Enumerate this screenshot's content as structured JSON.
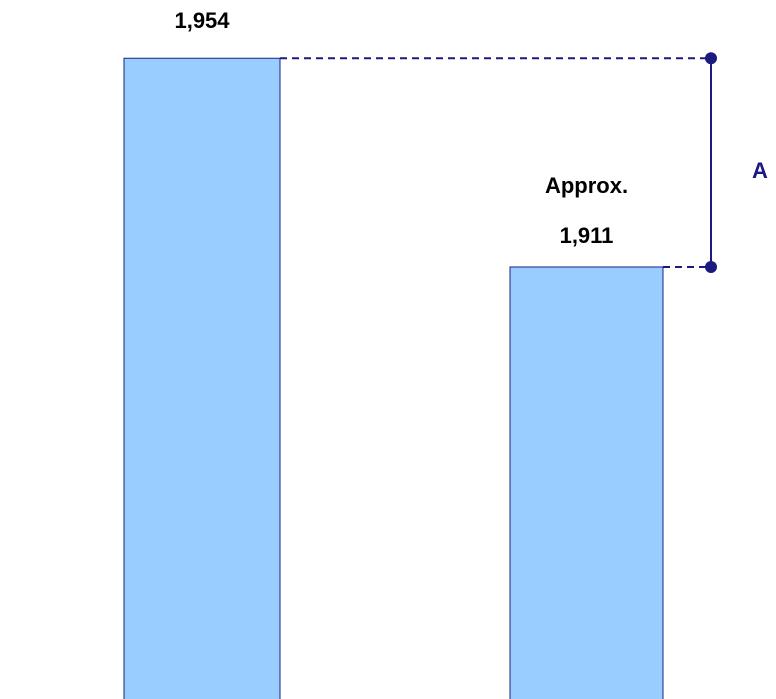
{
  "chart_data": {
    "type": "bar",
    "categories": [
      null,
      null
    ],
    "values": [
      1954,
      1911
    ],
    "value_labels": [
      "1,954",
      "1,911"
    ],
    "approx_label": "Approx.",
    "annotation": "A",
    "color": "#99ccff",
    "edge_color": "#1a237e",
    "annotation_color": "#1a1a80",
    "ylim": [
      1822,
      1966
    ]
  }
}
